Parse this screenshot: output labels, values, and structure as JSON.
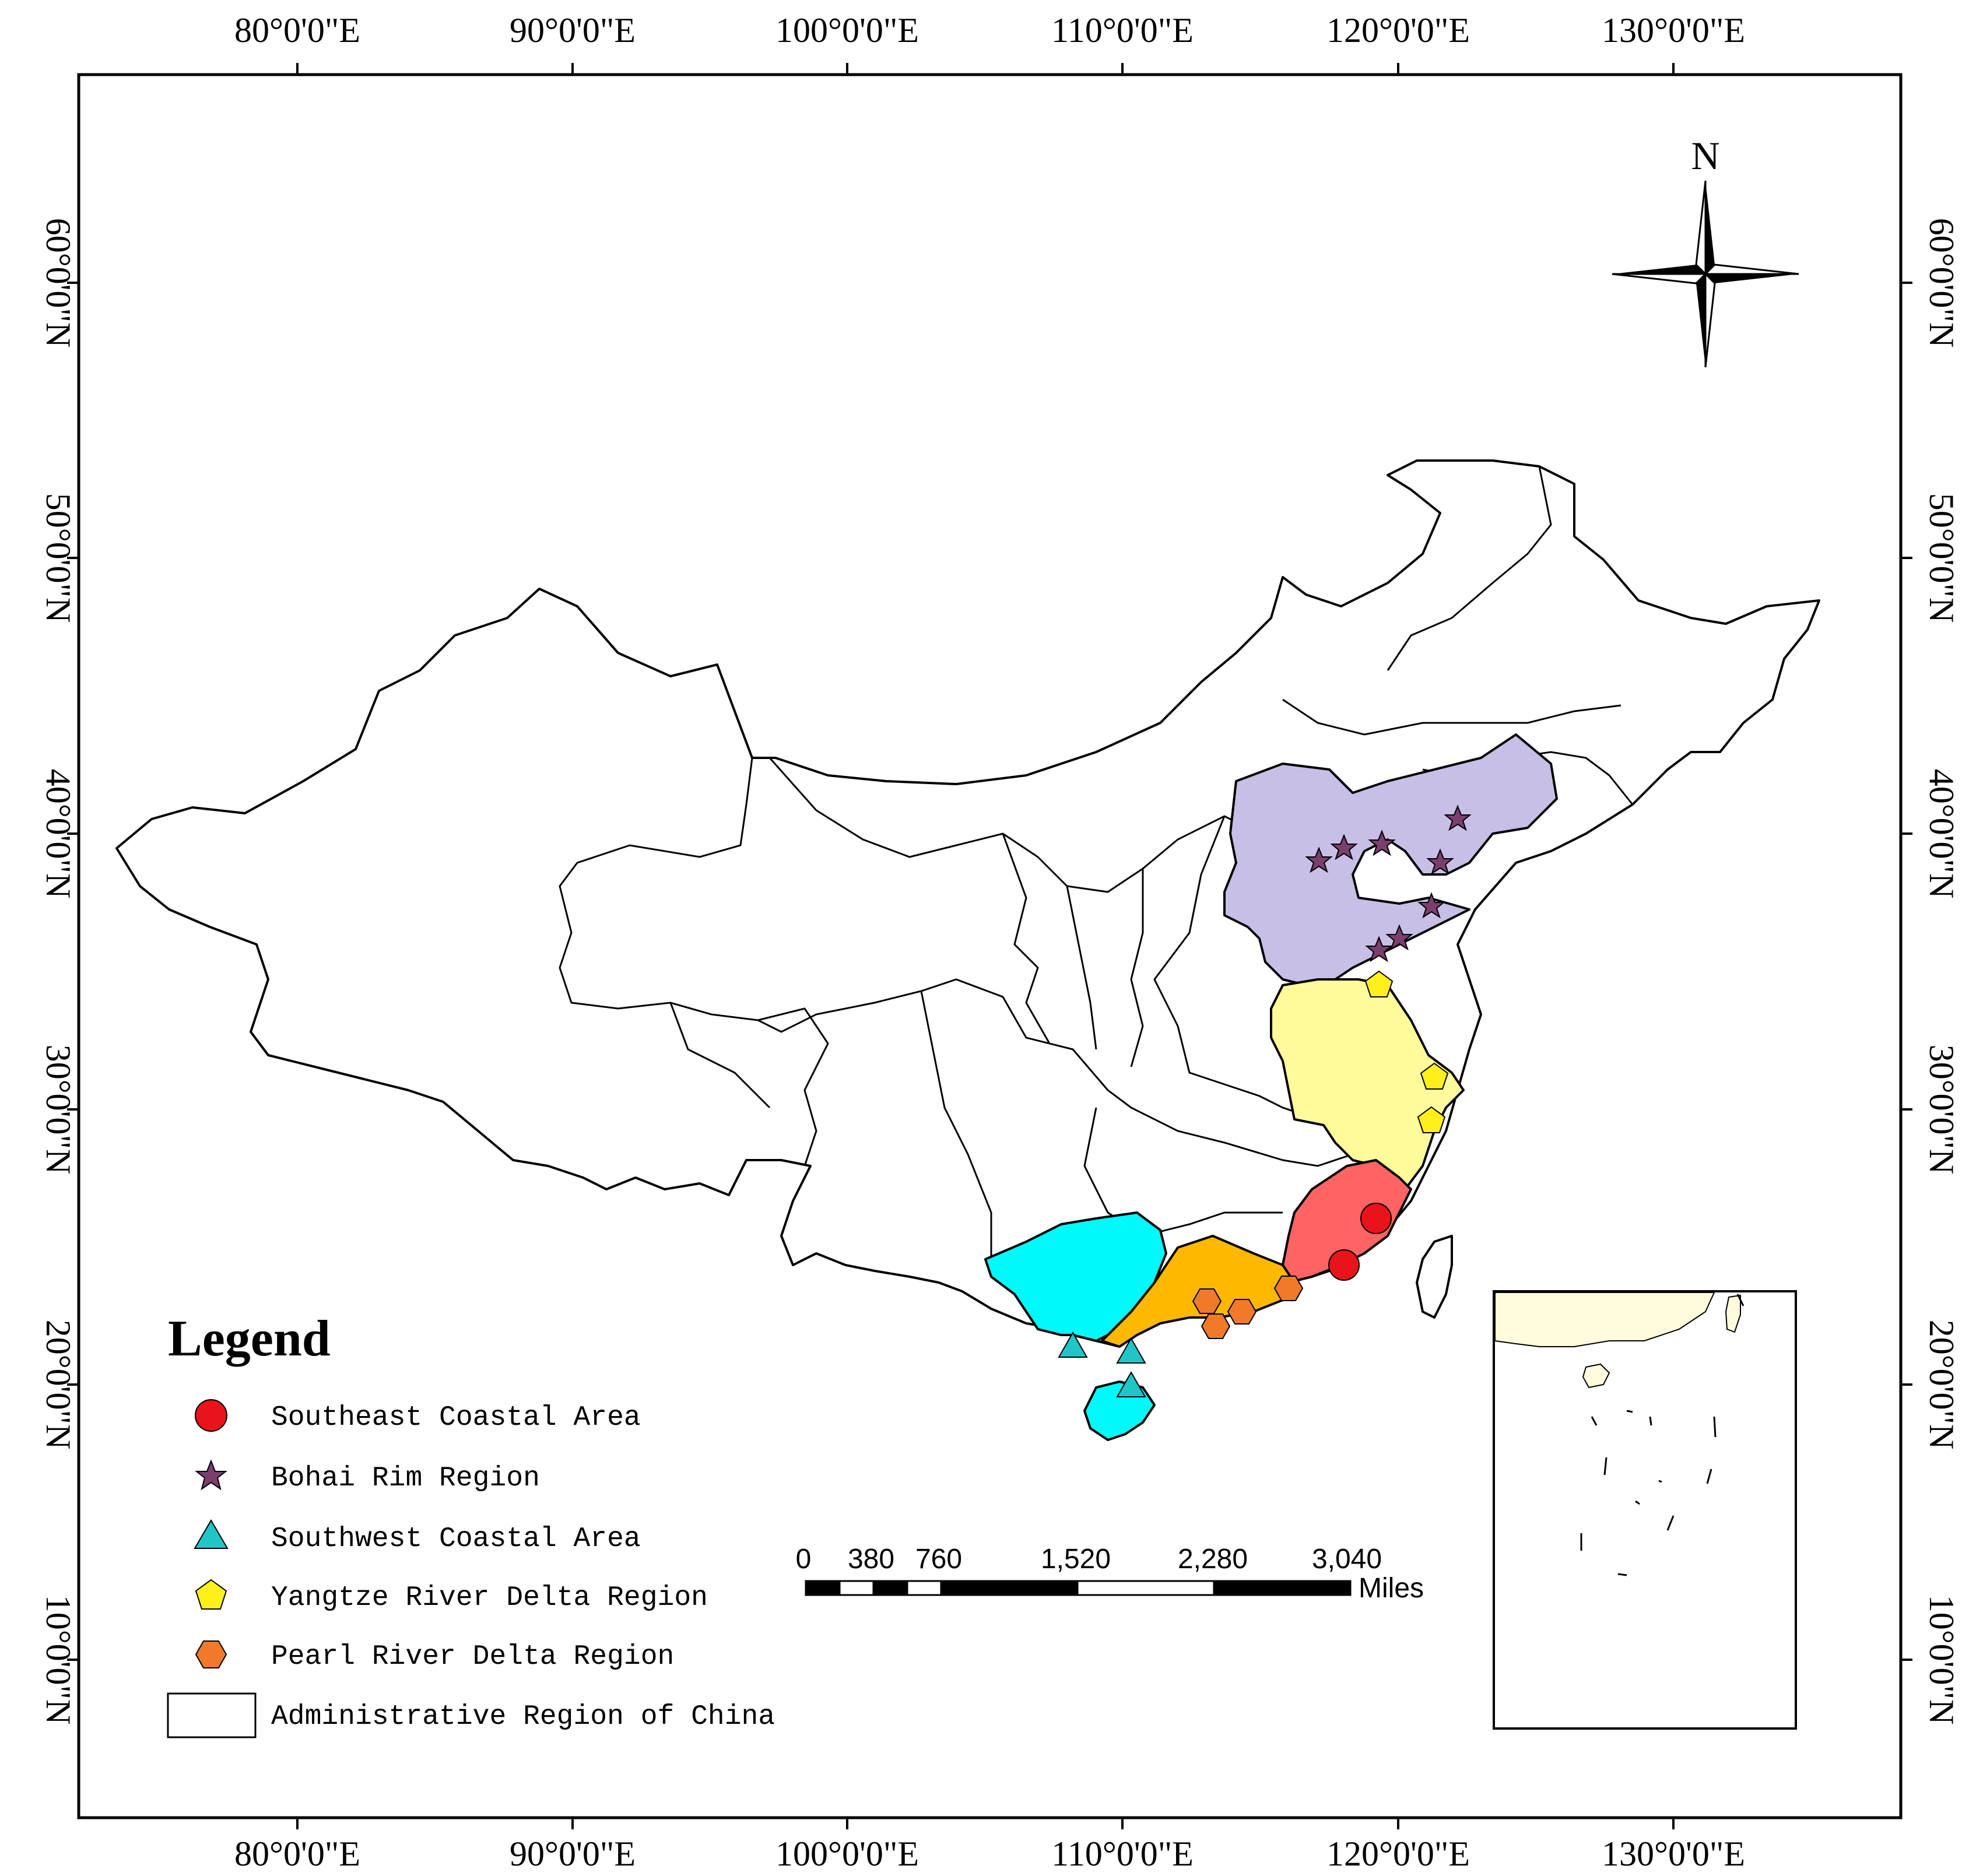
{
  "axes": {
    "lon_labels": [
      "80°0'0\"E",
      "90°0'0\"E",
      "100°0'0\"E",
      "110°0'0\"E",
      "120°0'0\"E",
      "130°0'0\"E"
    ],
    "lat_labels": [
      "60°0'0\"N",
      "50°0'0\"N",
      "40°0'0\"N",
      "30°0'0\"N",
      "20°0'0\"N",
      "10°0'0\"N"
    ]
  },
  "north_arrow": {
    "label": "N",
    "icon": "compass-rose-icon"
  },
  "legend": {
    "title": "Legend",
    "items": [
      {
        "label": "Southeast Coastal Area",
        "symbol": "circle",
        "color": "#e8141a"
      },
      {
        "label": "Bohai Rim Region",
        "symbol": "star",
        "color": "#7b3f6e"
      },
      {
        "label": "Southwest Coastal Area",
        "symbol": "triangle",
        "color": "#20c6c6"
      },
      {
        "label": "Yangtze River Delta Region",
        "symbol": "pentagon",
        "color": "#ffef1a"
      },
      {
        "label": "Pearl River Delta Region",
        "symbol": "hexagon",
        "color": "#f07a2a"
      },
      {
        "label": "Administrative Region of China",
        "symbol": "rectangle",
        "color": "#ffffff"
      }
    ]
  },
  "scale_bar": {
    "labels": [
      "0",
      "380",
      "760",
      "1,520",
      "2,280",
      "3,040"
    ],
    "unit": "Miles"
  },
  "region_colors": {
    "bohai": "#c7bfe6",
    "yangtze": "#fffb9a",
    "southeast": "#ff6464",
    "pearl": "#ffb800",
    "southwest": "#00fafa"
  }
}
